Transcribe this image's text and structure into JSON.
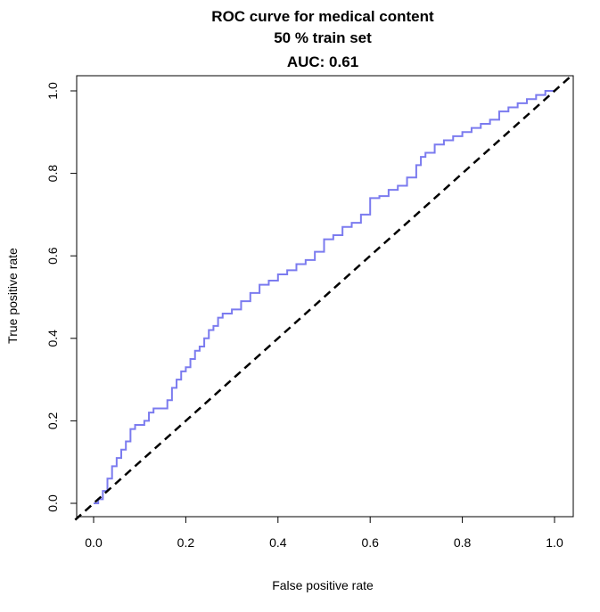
{
  "chart_data": {
    "type": "line",
    "title_lines": [
      "ROC curve for medical content",
      "50 % train set",
      "AUC:  0.61"
    ],
    "xlabel": "False positive rate",
    "ylabel": "True positive rate",
    "xlim": [
      0,
      1
    ],
    "ylim": [
      0,
      1
    ],
    "x_ticks": [
      "0.0",
      "0.2",
      "0.4",
      "0.6",
      "0.8",
      "1.0"
    ],
    "y_ticks": [
      "0.0",
      "0.2",
      "0.4",
      "0.6",
      "0.8",
      "1.0"
    ],
    "grid": false,
    "legend": "none",
    "series": [
      {
        "role": "roc",
        "color": "#7b7bef",
        "style": "solid",
        "x": [
          0.0,
          0.01,
          0.02,
          0.03,
          0.04,
          0.05,
          0.06,
          0.07,
          0.08,
          0.09,
          0.1,
          0.11,
          0.12,
          0.13,
          0.15,
          0.16,
          0.17,
          0.18,
          0.19,
          0.2,
          0.21,
          0.22,
          0.23,
          0.24,
          0.25,
          0.26,
          0.27,
          0.28,
          0.3,
          0.32,
          0.34,
          0.36,
          0.38,
          0.4,
          0.42,
          0.44,
          0.46,
          0.48,
          0.5,
          0.52,
          0.54,
          0.56,
          0.58,
          0.6,
          0.62,
          0.64,
          0.66,
          0.68,
          0.7,
          0.71,
          0.72,
          0.74,
          0.76,
          0.78,
          0.8,
          0.82,
          0.84,
          0.86,
          0.88,
          0.9,
          0.92,
          0.94,
          0.96,
          0.98,
          1.0
        ],
        "y": [
          0.0,
          0.01,
          0.03,
          0.06,
          0.09,
          0.11,
          0.13,
          0.15,
          0.18,
          0.19,
          0.19,
          0.2,
          0.22,
          0.23,
          0.23,
          0.25,
          0.28,
          0.3,
          0.32,
          0.33,
          0.35,
          0.37,
          0.38,
          0.4,
          0.42,
          0.43,
          0.45,
          0.46,
          0.47,
          0.49,
          0.51,
          0.53,
          0.54,
          0.555,
          0.565,
          0.58,
          0.59,
          0.61,
          0.64,
          0.65,
          0.67,
          0.68,
          0.7,
          0.74,
          0.745,
          0.76,
          0.77,
          0.79,
          0.82,
          0.84,
          0.85,
          0.87,
          0.88,
          0.89,
          0.9,
          0.91,
          0.92,
          0.93,
          0.95,
          0.96,
          0.97,
          0.98,
          0.99,
          1.0,
          1.0
        ]
      },
      {
        "role": "diagonal",
        "color": "#000000",
        "style": "dashed",
        "x": [
          0,
          1
        ],
        "y": [
          0,
          1
        ]
      }
    ]
  }
}
